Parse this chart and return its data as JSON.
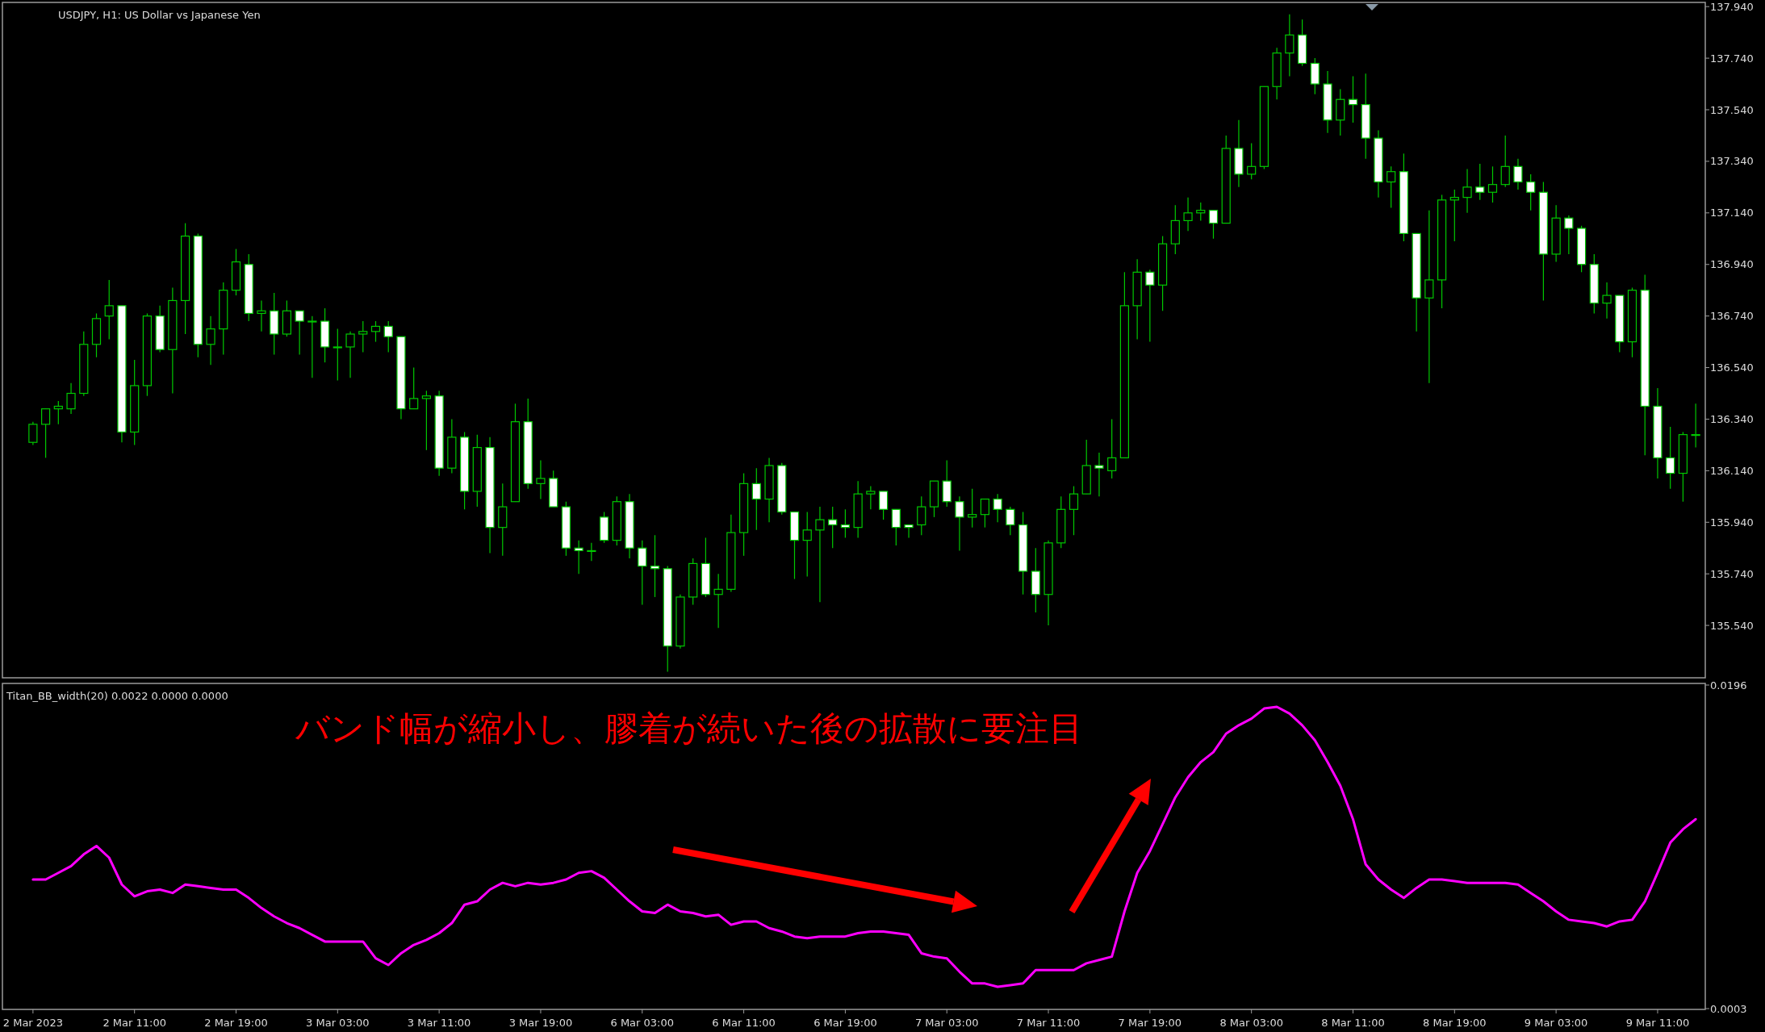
{
  "chart_data": [
    {
      "type": "candlestick",
      "title": "USDJPY, H1:  US Dollar vs Japanese Yen",
      "color": "#00c800",
      "tick_labels": "y",
      "categories": [
        null,
        null,
        null,
        null,
        null,
        null,
        null,
        null,
        null,
        null,
        null,
        null,
        null,
        null,
        null,
        null,
        null,
        null,
        null,
        null,
        null,
        null,
        null,
        null,
        null,
        null,
        null,
        null,
        null,
        null,
        null,
        null,
        null,
        null,
        null,
        null,
        null,
        null,
        null,
        null,
        null,
        null,
        null,
        null,
        null,
        null,
        null,
        null,
        null,
        null,
        null,
        null,
        null,
        null,
        null,
        null,
        null,
        null,
        null,
        null,
        null,
        null,
        null,
        null,
        null,
        null,
        null,
        null,
        null,
        null,
        null,
        null,
        null,
        null,
        null,
        null,
        null,
        null,
        null,
        null,
        null,
        null,
        null,
        null,
        null,
        null,
        null,
        null,
        null,
        null,
        null,
        null,
        null,
        null,
        null,
        null,
        null,
        null,
        null,
        null,
        null,
        null,
        null,
        null,
        null,
        null,
        null,
        null,
        null,
        null,
        null,
        null,
        null,
        null,
        null,
        null,
        null,
        null,
        null,
        null,
        null,
        null,
        null,
        null,
        null,
        null,
        null,
        null,
        null,
        null,
        null,
        null
      ],
      "ohlc": [
        [
          136.25,
          136.33,
          136.24,
          136.32
        ],
        [
          136.32,
          136.38,
          136.19,
          136.38
        ],
        [
          136.38,
          136.41,
          136.32,
          136.39
        ],
        [
          136.38,
          136.48,
          136.36,
          136.44
        ],
        [
          136.44,
          136.68,
          136.43,
          136.63
        ],
        [
          136.63,
          136.75,
          136.58,
          136.73
        ],
        [
          136.74,
          136.88,
          136.65,
          136.78
        ],
        [
          136.78,
          136.78,
          136.25,
          136.29
        ],
        [
          136.29,
          136.57,
          136.24,
          136.47
        ],
        [
          136.47,
          136.75,
          136.43,
          136.74
        ],
        [
          136.74,
          136.78,
          136.6,
          136.61
        ],
        [
          136.61,
          136.85,
          136.44,
          136.8
        ],
        [
          136.8,
          137.1,
          136.67,
          137.05
        ],
        [
          137.05,
          137.06,
          136.58,
          136.63
        ],
        [
          136.63,
          136.74,
          136.55,
          136.69
        ],
        [
          136.69,
          136.87,
          136.59,
          136.84
        ],
        [
          136.84,
          137.0,
          136.82,
          136.95
        ],
        [
          136.94,
          136.98,
          136.72,
          136.75
        ],
        [
          136.75,
          136.8,
          136.68,
          136.76
        ],
        [
          136.76,
          136.83,
          136.59,
          136.67
        ],
        [
          136.67,
          136.8,
          136.66,
          136.76
        ],
        [
          136.76,
          136.76,
          136.59,
          136.72
        ],
        [
          136.72,
          136.74,
          136.5,
          136.72
        ],
        [
          136.72,
          136.77,
          136.56,
          136.62
        ],
        [
          136.62,
          136.69,
          136.49,
          136.62
        ],
        [
          136.62,
          136.68,
          136.5,
          136.67
        ],
        [
          136.67,
          136.72,
          136.6,
          136.68
        ],
        [
          136.68,
          136.72,
          136.64,
          136.7
        ],
        [
          136.7,
          136.72,
          136.6,
          136.66
        ],
        [
          136.66,
          136.66,
          136.34,
          136.38
        ],
        [
          136.38,
          136.54,
          136.38,
          136.42
        ],
        [
          136.42,
          136.45,
          136.22,
          136.43
        ],
        [
          136.43,
          136.45,
          136.12,
          136.15
        ],
        [
          136.15,
          136.34,
          136.13,
          136.27
        ],
        [
          136.27,
          136.29,
          135.99,
          136.06
        ],
        [
          136.06,
          136.28,
          136.0,
          136.23
        ],
        [
          136.23,
          136.27,
          135.82,
          135.92
        ],
        [
          135.92,
          136.09,
          135.81,
          136.0
        ],
        [
          136.02,
          136.4,
          136.02,
          136.33
        ],
        [
          136.33,
          136.42,
          136.07,
          136.09
        ],
        [
          136.09,
          136.18,
          136.03,
          136.11
        ],
        [
          136.11,
          136.14,
          136.0,
          136.0
        ],
        [
          136.0,
          136.02,
          135.81,
          135.84
        ],
        [
          135.84,
          135.87,
          135.74,
          135.83
        ],
        [
          135.83,
          135.86,
          135.79,
          135.83
        ],
        [
          135.96,
          135.98,
          135.86,
          135.87
        ],
        [
          135.87,
          136.04,
          135.85,
          136.02
        ],
        [
          136.02,
          136.05,
          135.8,
          135.84
        ],
        [
          135.84,
          135.87,
          135.62,
          135.77
        ],
        [
          135.77,
          135.89,
          135.65,
          135.76
        ],
        [
          135.76,
          135.77,
          135.36,
          135.46
        ],
        [
          135.46,
          135.66,
          135.45,
          135.65
        ],
        [
          135.65,
          135.8,
          135.62,
          135.78
        ],
        [
          135.78,
          135.88,
          135.65,
          135.66
        ],
        [
          135.66,
          135.74,
          135.53,
          135.68
        ],
        [
          135.68,
          135.97,
          135.67,
          135.9
        ],
        [
          135.9,
          136.13,
          135.81,
          136.09
        ],
        [
          136.09,
          136.15,
          135.91,
          136.03
        ],
        [
          136.03,
          136.19,
          135.94,
          136.16
        ],
        [
          136.16,
          136.17,
          135.97,
          135.98
        ],
        [
          135.98,
          135.98,
          135.72,
          135.87
        ],
        [
          135.87,
          135.98,
          135.73,
          135.91
        ],
        [
          135.91,
          136.0,
          135.63,
          135.95
        ],
        [
          135.95,
          136.0,
          135.84,
          135.93
        ],
        [
          135.93,
          135.99,
          135.88,
          135.92
        ],
        [
          135.92,
          136.1,
          135.88,
          136.05
        ],
        [
          136.05,
          136.08,
          135.99,
          136.06
        ],
        [
          136.06,
          136.06,
          135.95,
          135.99
        ],
        [
          135.99,
          135.99,
          135.85,
          135.92
        ],
        [
          135.93,
          135.93,
          135.88,
          135.92
        ],
        [
          135.93,
          136.04,
          135.89,
          136.0
        ],
        [
          136.0,
          136.1,
          135.96,
          136.1
        ],
        [
          136.1,
          136.18,
          136.0,
          136.02
        ],
        [
          136.02,
          136.04,
          135.83,
          135.96
        ],
        [
          135.96,
          136.07,
          135.92,
          135.97
        ],
        [
          135.97,
          136.03,
          135.92,
          136.03
        ],
        [
          136.03,
          136.05,
          135.94,
          135.99
        ],
        [
          135.99,
          136.0,
          135.89,
          135.93
        ],
        [
          135.93,
          135.98,
          135.66,
          135.75
        ],
        [
          135.75,
          135.84,
          135.59,
          135.66
        ],
        [
          135.66,
          135.87,
          135.54,
          135.86
        ],
        [
          135.86,
          136.04,
          135.84,
          135.99
        ],
        [
          135.99,
          136.08,
          135.89,
          136.05
        ],
        [
          136.05,
          136.26,
          136.05,
          136.16
        ],
        [
          136.16,
          136.21,
          136.04,
          136.15
        ],
        [
          136.14,
          136.34,
          136.11,
          136.19
        ],
        [
          136.19,
          136.91,
          136.19,
          136.78
        ],
        [
          136.78,
          136.96,
          136.65,
          136.91
        ],
        [
          136.91,
          136.92,
          136.64,
          136.86
        ],
        [
          136.86,
          137.05,
          136.76,
          137.02
        ],
        [
          137.02,
          137.17,
          136.98,
          137.11
        ],
        [
          137.11,
          137.2,
          137.07,
          137.14
        ],
        [
          137.14,
          137.18,
          137.11,
          137.15
        ],
        [
          137.15,
          137.15,
          137.04,
          137.1
        ],
        [
          137.1,
          137.44,
          137.1,
          137.39
        ],
        [
          137.39,
          137.5,
          137.24,
          137.29
        ],
        [
          137.29,
          137.41,
          137.27,
          137.32
        ],
        [
          137.32,
          137.63,
          137.31,
          137.63
        ],
        [
          137.63,
          137.78,
          137.58,
          137.76
        ],
        [
          137.76,
          137.91,
          137.67,
          137.83
        ],
        [
          137.83,
          137.89,
          137.71,
          137.72
        ],
        [
          137.72,
          137.74,
          137.6,
          137.64
        ],
        [
          137.64,
          137.69,
          137.45,
          137.5
        ],
        [
          137.5,
          137.62,
          137.44,
          137.58
        ],
        [
          137.58,
          137.67,
          137.49,
          137.56
        ],
        [
          137.56,
          137.68,
          137.35,
          137.43
        ],
        [
          137.43,
          137.46,
          137.2,
          137.26
        ],
        [
          137.26,
          137.32,
          137.16,
          137.3
        ],
        [
          137.3,
          137.37,
          137.03,
          137.06
        ],
        [
          137.06,
          137.06,
          136.68,
          136.81
        ],
        [
          136.81,
          137.15,
          136.48,
          136.88
        ],
        [
          136.88,
          137.21,
          136.77,
          137.19
        ],
        [
          137.19,
          137.23,
          137.03,
          137.2
        ],
        [
          137.2,
          137.31,
          137.14,
          137.24
        ],
        [
          137.24,
          137.33,
          137.19,
          137.22
        ],
        [
          137.22,
          137.32,
          137.18,
          137.25
        ],
        [
          137.25,
          137.44,
          137.24,
          137.32
        ],
        [
          137.32,
          137.35,
          137.23,
          137.26
        ],
        [
          137.26,
          137.29,
          137.15,
          137.22
        ],
        [
          137.22,
          137.26,
          136.8,
          136.98
        ],
        [
          136.98,
          137.17,
          136.95,
          137.12
        ],
        [
          137.12,
          137.13,
          136.98,
          137.08
        ],
        [
          137.08,
          137.09,
          136.91,
          136.94
        ],
        [
          136.94,
          136.98,
          136.75,
          136.79
        ],
        [
          136.79,
          136.87,
          136.73,
          136.82
        ],
        [
          136.82,
          136.82,
          136.6,
          136.64
        ],
        [
          136.64,
          136.85,
          136.58,
          136.84
        ],
        [
          136.84,
          136.9,
          136.2,
          136.39
        ],
        [
          136.39,
          136.46,
          136.11,
          136.19
        ],
        [
          136.19,
          136.31,
          136.07,
          136.13
        ],
        [
          136.13,
          136.29,
          136.02,
          136.28
        ],
        [
          136.28,
          136.4,
          136.23,
          136.28
        ]
      ],
      "ylim": [
        135.34,
        137.95
      ],
      "yticks": [
        {
          "value": 137.94,
          "label": "137.940"
        },
        {
          "value": 137.74,
          "label": "137.740"
        },
        {
          "value": 137.54,
          "label": "137.540"
        },
        {
          "value": 137.34,
          "label": "137.340"
        },
        {
          "value": 137.14,
          "label": "137.140"
        },
        {
          "value": 136.94,
          "label": "136.940"
        },
        {
          "value": 136.74,
          "label": "136.740"
        },
        {
          "value": 136.54,
          "label": "136.540"
        },
        {
          "value": 136.34,
          "label": "136.340"
        },
        {
          "value": 136.14,
          "label": "136.140"
        },
        {
          "value": 135.94,
          "label": "135.940"
        },
        {
          "value": 135.74,
          "label": "135.740"
        },
        {
          "value": 135.54,
          "label": "135.540"
        }
      ]
    },
    {
      "type": "line",
      "title": "Titan_BB_width(20) 0.0022 0.0000 0.0000",
      "categories": [
        "2 Mar 2023",
        null,
        null,
        null,
        null,
        null,
        null,
        null,
        "2 Mar 11:00",
        null,
        null,
        null,
        null,
        null,
        null,
        null,
        "2 Mar 19:00",
        null,
        null,
        null,
        null,
        null,
        null,
        null,
        "3 Mar 03:00",
        null,
        null,
        null,
        null,
        null,
        null,
        null,
        "3 Mar 11:00",
        null,
        null,
        null,
        null,
        null,
        null,
        null,
        "3 Mar 19:00",
        null,
        null,
        null,
        null,
        null,
        null,
        null,
        "6 Mar 03:00",
        null,
        null,
        null,
        null,
        null,
        null,
        null,
        "6 Mar 11:00",
        null,
        null,
        null,
        null,
        null,
        null,
        null,
        "6 Mar 19:00",
        null,
        null,
        null,
        null,
        null,
        null,
        null,
        "7 Mar 03:00",
        null,
        null,
        null,
        null,
        null,
        null,
        null,
        "7 Mar 11:00",
        null,
        null,
        null,
        null,
        null,
        null,
        null,
        "7 Mar 19:00",
        null,
        null,
        null,
        null,
        null,
        null,
        null,
        "8 Mar 03:00",
        null,
        null,
        null,
        null,
        null,
        null,
        null,
        "8 Mar 11:00",
        null,
        null,
        null,
        null,
        null,
        null,
        null,
        "8 Mar 19:00",
        null,
        null,
        null,
        null,
        null,
        null,
        null,
        "9 Mar 03:00",
        null,
        null,
        null,
        null,
        null,
        null,
        null,
        "9 Mar 11:00",
        null,
        null,
        null
      ],
      "series": [
        {
          "color": "#ff00ff",
          "values": [
            0.008,
            0.008,
            0.0084,
            0.0088,
            0.0095,
            0.01,
            0.0093,
            0.0077,
            0.007,
            0.0073,
            0.0074,
            0.0072,
            0.0077,
            0.0076,
            0.0075,
            0.0074,
            0.0074,
            0.0069,
            0.0063,
            0.0058,
            0.0054,
            0.0051,
            0.0047,
            0.0043,
            0.0043,
            0.0043,
            0.0043,
            0.0033,
            0.0029,
            0.0036,
            0.0041,
            0.0044,
            0.0048,
            0.0054,
            0.0065,
            0.0067,
            0.0074,
            0.0078,
            0.0076,
            0.0078,
            0.0077,
            0.0078,
            0.008,
            0.0084,
            0.0085,
            0.0081,
            0.0074,
            0.0067,
            0.0061,
            0.006,
            0.0065,
            0.0061,
            0.006,
            0.0058,
            0.0059,
            0.0053,
            0.0055,
            0.0055,
            0.0051,
            0.0049,
            0.0046,
            0.0045,
            0.0046,
            0.0046,
            0.0046,
            0.0048,
            0.0049,
            0.0049,
            0.0048,
            0.0047,
            0.0036,
            0.0034,
            0.0033,
            0.0025,
            0.0018,
            0.0018,
            0.0016,
            0.0017,
            0.0018,
            0.0026,
            0.0026,
            0.0026,
            0.0026,
            0.003,
            0.0032,
            0.0034,
            0.0061,
            0.0084,
            0.0097,
            0.0113,
            0.0129,
            0.0141,
            0.015,
            0.0156,
            0.0167,
            0.0172,
            0.0176,
            0.0182,
            0.0183,
            0.0179,
            0.0172,
            0.0163,
            0.015,
            0.0136,
            0.0116,
            0.0089,
            0.008,
            0.0074,
            0.0069,
            0.0075,
            0.008,
            0.008,
            0.0079,
            0.0078,
            0.0078,
            0.0078,
            0.0078,
            0.0077,
            0.0072,
            0.0067,
            0.0061,
            0.0056,
            0.0055,
            0.0054,
            0.0052,
            0.0055,
            0.0056,
            0.0067,
            0.0084,
            0.0102,
            0.011,
            0.0116
          ]
        }
      ],
      "ylim": [
        0.0003,
        0.0196
      ],
      "yticks": [
        0.0003,
        0.0196
      ],
      "annotations": [
        "バンド幅が縮小し、膠着が続いた後の拡散に要注目"
      ]
    }
  ]
}
